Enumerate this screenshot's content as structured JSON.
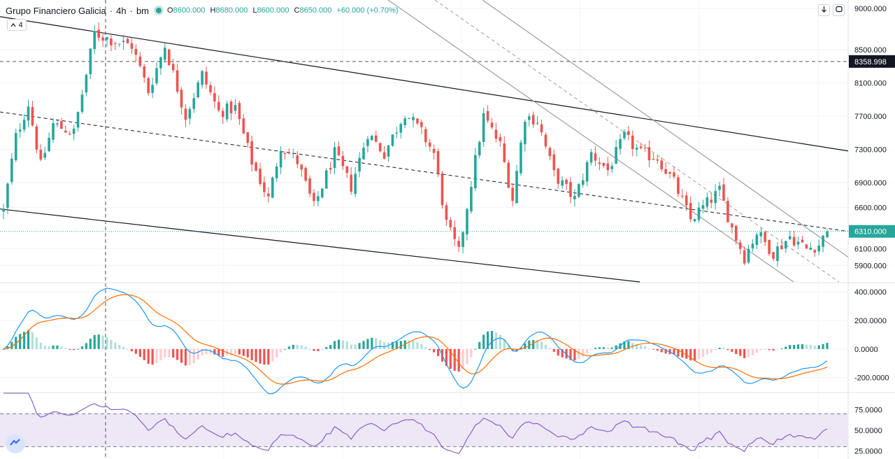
{
  "header": {
    "symbol": "Grupo Financiero Galicia",
    "interval": "4h",
    "exchange": "bm",
    "open_label": "O",
    "open": "8600.000",
    "high_label": "H",
    "high": "8680.000",
    "low_label": "L",
    "low": "8600.000",
    "close_label": "C",
    "close": "8650.000",
    "change": "+60.000 (+0.70%)",
    "collapse_count": "4",
    "status_color": "#26a69a"
  },
  "toolbar": {
    "down_icon": "arrow-down-icon",
    "fullscreen_icon": "fullscreen-icon"
  },
  "price_axis": {
    "ticks": [
      "9000.000",
      "8500.000",
      "8100.000",
      "7700.000",
      "7300.000",
      "6900.000",
      "6600.000",
      "6100.000",
      "5900.000"
    ],
    "tick_values": [
      9000,
      8500,
      8100,
      7700,
      7300,
      6900,
      6600,
      6100,
      5900
    ],
    "crosshair_label": "8358.998",
    "crosshair_value": 8358.998,
    "last_price_label": "6310.000",
    "last_price_value": 6310
  },
  "macd_axis": {
    "ticks": [
      "400.0000",
      "200.0000",
      "0.0000",
      "-200.0000"
    ],
    "tick_values": [
      400,
      200,
      0,
      -200
    ]
  },
  "rsi_axis": {
    "ticks": [
      "75.0000",
      "50.0000",
      "25.0000"
    ],
    "tick_values": [
      75,
      50,
      25
    ],
    "band": [
      30,
      70
    ]
  },
  "colors": {
    "up": "#26a69a",
    "down": "#ef5350",
    "macd": "#2196f3",
    "signal": "#ff6d00",
    "rsi": "#7e57c2",
    "band": "#ede7f6"
  },
  "chart_data": [
    {
      "type": "candlestick",
      "title": "Grupo Financiero Galicia · 4h · bm",
      "n_bars": 200,
      "y_range": [
        5700,
        9100
      ],
      "close_anchors": [
        {
          "i": 0,
          "close": 6560
        },
        {
          "i": 3,
          "close": 7450
        },
        {
          "i": 6,
          "close": 7850
        },
        {
          "i": 9,
          "close": 7100
        },
        {
          "i": 12,
          "close": 7600
        },
        {
          "i": 17,
          "close": 7500
        },
        {
          "i": 20,
          "close": 8200
        },
        {
          "i": 22,
          "close": 8700
        },
        {
          "i": 27,
          "close": 8600
        },
        {
          "i": 31,
          "close": 8550
        },
        {
          "i": 35,
          "close": 8000
        },
        {
          "i": 39,
          "close": 8550
        },
        {
          "i": 44,
          "close": 7700
        },
        {
          "i": 48,
          "close": 8200
        },
        {
          "i": 52,
          "close": 7750
        },
        {
          "i": 56,
          "close": 7800
        },
        {
          "i": 60,
          "close": 7150
        },
        {
          "i": 64,
          "close": 6700
        },
        {
          "i": 67,
          "close": 7350
        },
        {
          "i": 71,
          "close": 7150
        },
        {
          "i": 75,
          "close": 6600
        },
        {
          "i": 80,
          "close": 7250
        },
        {
          "i": 84,
          "close": 6850
        },
        {
          "i": 88,
          "close": 7500
        },
        {
          "i": 92,
          "close": 7250
        },
        {
          "i": 97,
          "close": 7750
        },
        {
          "i": 101,
          "close": 7500
        },
        {
          "i": 104,
          "close": 7250
        },
        {
          "i": 107,
          "close": 6400
        },
        {
          "i": 110,
          "close": 6050
        },
        {
          "i": 113,
          "close": 6900
        },
        {
          "i": 116,
          "close": 7700
        },
        {
          "i": 120,
          "close": 7350
        },
        {
          "i": 123,
          "close": 6700
        },
        {
          "i": 126,
          "close": 7700
        },
        {
          "i": 129,
          "close": 7650
        },
        {
          "i": 133,
          "close": 7000
        },
        {
          "i": 138,
          "close": 6700
        },
        {
          "i": 142,
          "close": 7250
        },
        {
          "i": 146,
          "close": 7050
        },
        {
          "i": 150,
          "close": 7450
        },
        {
          "i": 154,
          "close": 7250
        },
        {
          "i": 158,
          "close": 7200
        },
        {
          "i": 162,
          "close": 6900
        },
        {
          "i": 166,
          "close": 6450
        },
        {
          "i": 170,
          "close": 6650
        },
        {
          "i": 173,
          "close": 6800
        },
        {
          "i": 176,
          "close": 6350
        },
        {
          "i": 179,
          "close": 6000
        },
        {
          "i": 182,
          "close": 6300
        },
        {
          "i": 186,
          "close": 6050
        },
        {
          "i": 190,
          "close": 6250
        },
        {
          "i": 194,
          "close": 6100
        },
        {
          "i": 197,
          "close": 6150
        },
        {
          "i": 199,
          "close": 6310
        }
      ],
      "last_close": 6310
    },
    {
      "type": "line",
      "title": "MACD",
      "series": [
        {
          "name": "macd",
          "color": "#2196f3"
        },
        {
          "name": "signal",
          "color": "#ff6d00"
        },
        {
          "name": "histogram",
          "color": "#26a69a"
        }
      ],
      "y_range": [
        -300,
        460
      ]
    },
    {
      "type": "line",
      "title": "RSI",
      "series": [
        {
          "name": "rsi",
          "color": "#7e57c2"
        }
      ],
      "y_range": [
        15,
        95
      ]
    }
  ]
}
